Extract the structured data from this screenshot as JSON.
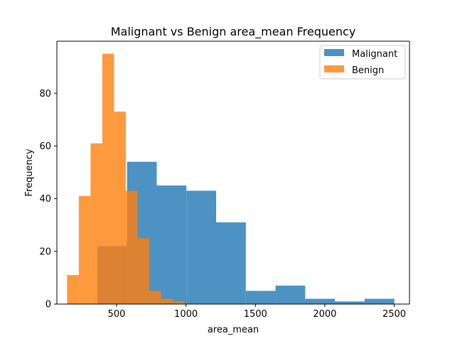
{
  "chart_data": {
    "type": "bar",
    "title": "Malignant vs Benign area_mean Frequency",
    "xlabel": "area_mean",
    "ylabel": "Frequency",
    "xlim": [
      70,
      2610
    ],
    "ylim": [
      0,
      99.75
    ],
    "xticks": [
      500,
      1000,
      1500,
      2000,
      2500
    ],
    "yticks": [
      0,
      20,
      40,
      60,
      80
    ],
    "grid": false,
    "legend_position": "top-right",
    "series": [
      {
        "name": "Malignant",
        "color": "#1f77b4",
        "opacity": 0.8,
        "bins": [
          {
            "x0": 361.6,
            "x1": 575.5,
            "count": 22
          },
          {
            "x0": 575.5,
            "x1": 789.4,
            "count": 54
          },
          {
            "x0": 789.4,
            "x1": 1003.3,
            "count": 45
          },
          {
            "x0": 1003.3,
            "x1": 1217.2,
            "count": 43
          },
          {
            "x0": 1217.2,
            "x1": 1431.1,
            "count": 31
          },
          {
            "x0": 1431.1,
            "x1": 1645.0,
            "count": 5
          },
          {
            "x0": 1645.0,
            "x1": 1858.9,
            "count": 7
          },
          {
            "x0": 1858.9,
            "x1": 2072.8,
            "count": 2
          },
          {
            "x0": 2072.8,
            "x1": 2286.7,
            "count": 1
          },
          {
            "x0": 2286.7,
            "x1": 2500.6,
            "count": 2
          }
        ]
      },
      {
        "name": "Benign",
        "color": "#ff7f0e",
        "opacity": 0.8,
        "bins": [
          {
            "x0": 143.5,
            "x1": 228.1,
            "count": 11
          },
          {
            "x0": 228.1,
            "x1": 312.7,
            "count": 41
          },
          {
            "x0": 312.7,
            "x1": 397.3,
            "count": 61
          },
          {
            "x0": 397.3,
            "x1": 481.9,
            "count": 95
          },
          {
            "x0": 481.9,
            "x1": 566.5,
            "count": 73
          },
          {
            "x0": 566.5,
            "x1": 651.1,
            "count": 43
          },
          {
            "x0": 651.1,
            "x1": 735.7,
            "count": 25
          },
          {
            "x0": 735.7,
            "x1": 820.3,
            "count": 5
          },
          {
            "x0": 820.3,
            "x1": 904.9,
            "count": 2
          },
          {
            "x0": 904.9,
            "x1": 989.5,
            "count": 1
          }
        ]
      }
    ]
  }
}
